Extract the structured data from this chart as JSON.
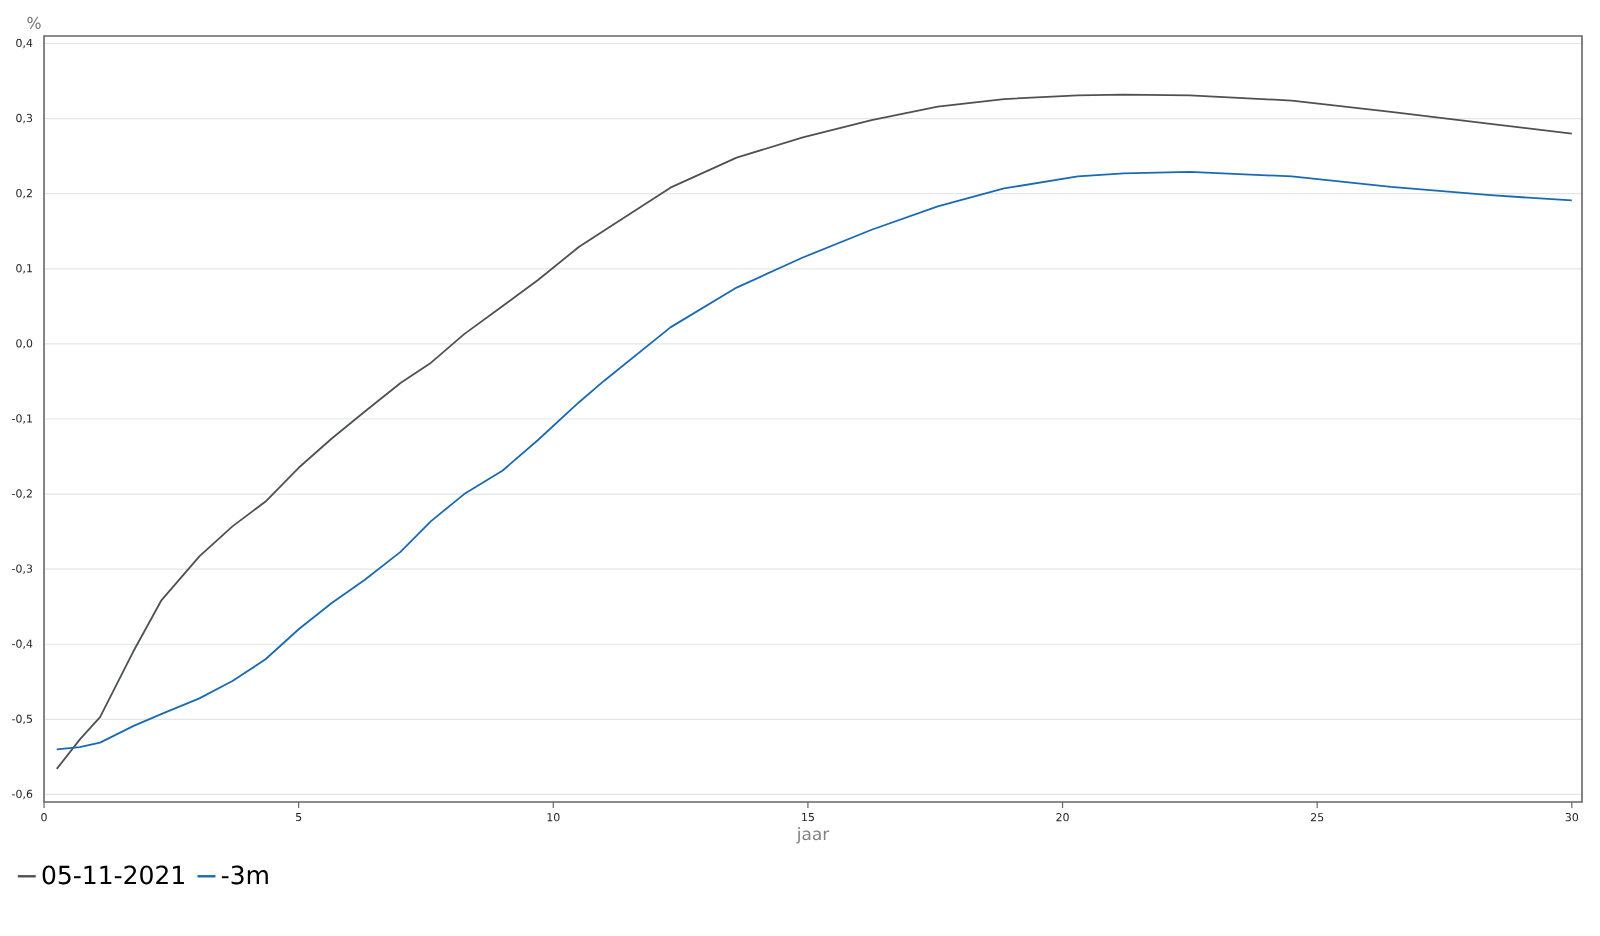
{
  "chart_data": {
    "type": "line",
    "xlabel": "jaar",
    "ylabel": "%",
    "x": [
      0.25,
      0.7,
      1.1,
      1.75,
      2.3,
      3.05,
      3.7,
      4.35,
      5.0,
      5.65,
      6.3,
      7.0,
      7.6,
      8.25,
      9.0,
      9.7,
      10.5,
      11.0,
      12.3,
      13.6,
      14.9,
      16.25,
      17.55,
      18.85,
      20.3,
      21.2,
      22.5,
      24.5,
      26.45,
      28.4,
      30
    ],
    "series": [
      {
        "name": "05-11-2021",
        "color": "#4d5156",
        "values": [
          -0.566,
          -0.527,
          -0.497,
          -0.41,
          -0.342,
          -0.283,
          -0.243,
          -0.21,
          -0.165,
          -0.126,
          -0.09,
          -0.052,
          -0.025,
          0.013,
          0.05,
          0.085,
          0.129,
          0.151,
          0.208,
          0.248,
          0.275,
          0.298,
          0.316,
          0.326,
          0.331,
          0.332,
          0.331,
          0.324,
          0.309,
          0.293,
          0.28
        ]
      },
      {
        "name": "-3m",
        "color": "#1a6ab3",
        "values": [
          -0.54,
          -0.537,
          -0.531,
          -0.509,
          -0.493,
          -0.472,
          -0.449,
          -0.42,
          -0.38,
          -0.345,
          -0.314,
          -0.277,
          -0.236,
          -0.2,
          -0.169,
          -0.128,
          -0.078,
          -0.049,
          0.022,
          0.075,
          0.115,
          0.152,
          0.183,
          0.207,
          0.223,
          0.227,
          0.229,
          0.223,
          0.209,
          0.198,
          0.191
        ]
      }
    ],
    "xlim": [
      0,
      30.2
    ],
    "ylim": [
      -0.61,
      0.41
    ],
    "xticks": [
      0,
      5,
      10,
      15,
      20,
      25,
      30
    ],
    "yticks": [
      {
        "value": -0.6,
        "label": "-0,6"
      },
      {
        "value": -0.5,
        "label": "-0,5"
      },
      {
        "value": -0.4,
        "label": "-0,4"
      },
      {
        "value": -0.3,
        "label": "-0,3"
      },
      {
        "value": -0.2,
        "label": "-0,2"
      },
      {
        "value": -0.1,
        "label": "-0,1"
      },
      {
        "value": 0.0,
        "label": "0,0"
      },
      {
        "value": 0.1,
        "label": "0,1"
      },
      {
        "value": 0.2,
        "label": "0,2"
      },
      {
        "value": 0.3,
        "label": "0,3"
      },
      {
        "value": 0.4,
        "label": "0,4"
      }
    ],
    "grid": "y",
    "legend": "bottom left"
  }
}
